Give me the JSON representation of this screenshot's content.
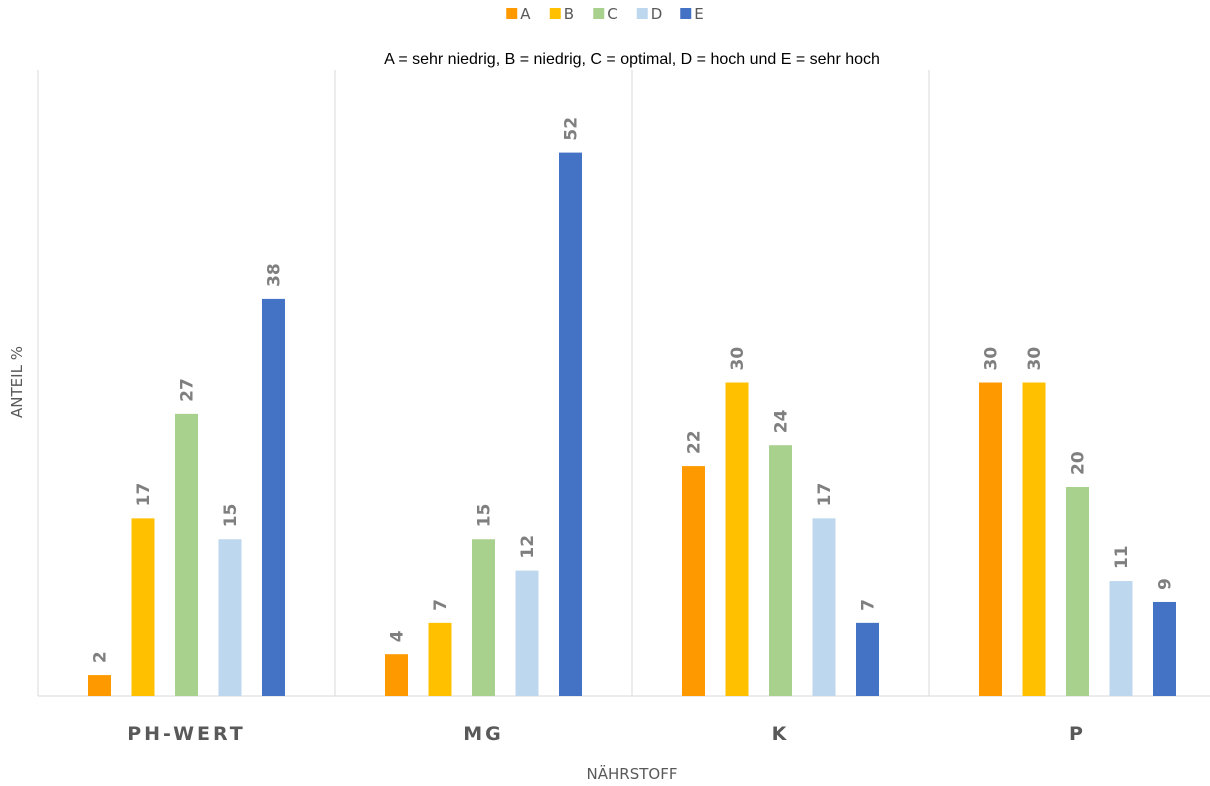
{
  "chart_data": {
    "type": "bar",
    "title": "",
    "subtitle": "A = sehr niedrig, B = niedrig, C = optimal, D = hoch und E = sehr hoch",
    "xlabel": "NÄHRSTOFF",
    "ylabel": "ANTEIL %",
    "categories": [
      "PH-WERT",
      "MG",
      "K",
      "P"
    ],
    "series": [
      {
        "name": "A",
        "color": "#FF9900",
        "values": [
          2,
          4,
          22,
          30
        ]
      },
      {
        "name": "B",
        "color": "#FFC000",
        "values": [
          17,
          7,
          30,
          30
        ]
      },
      {
        "name": "C",
        "color": "#A9D18E",
        "values": [
          27,
          15,
          24,
          20
        ]
      },
      {
        "name": "D",
        "color": "#BDD7EE",
        "values": [
          15,
          12,
          17,
          11
        ]
      },
      {
        "name": "E",
        "color": "#4472C4",
        "values": [
          38,
          52,
          7,
          9
        ]
      }
    ],
    "legend_position": "top",
    "ylim": [
      0,
      60
    ],
    "grid": "vertical category separators"
  }
}
